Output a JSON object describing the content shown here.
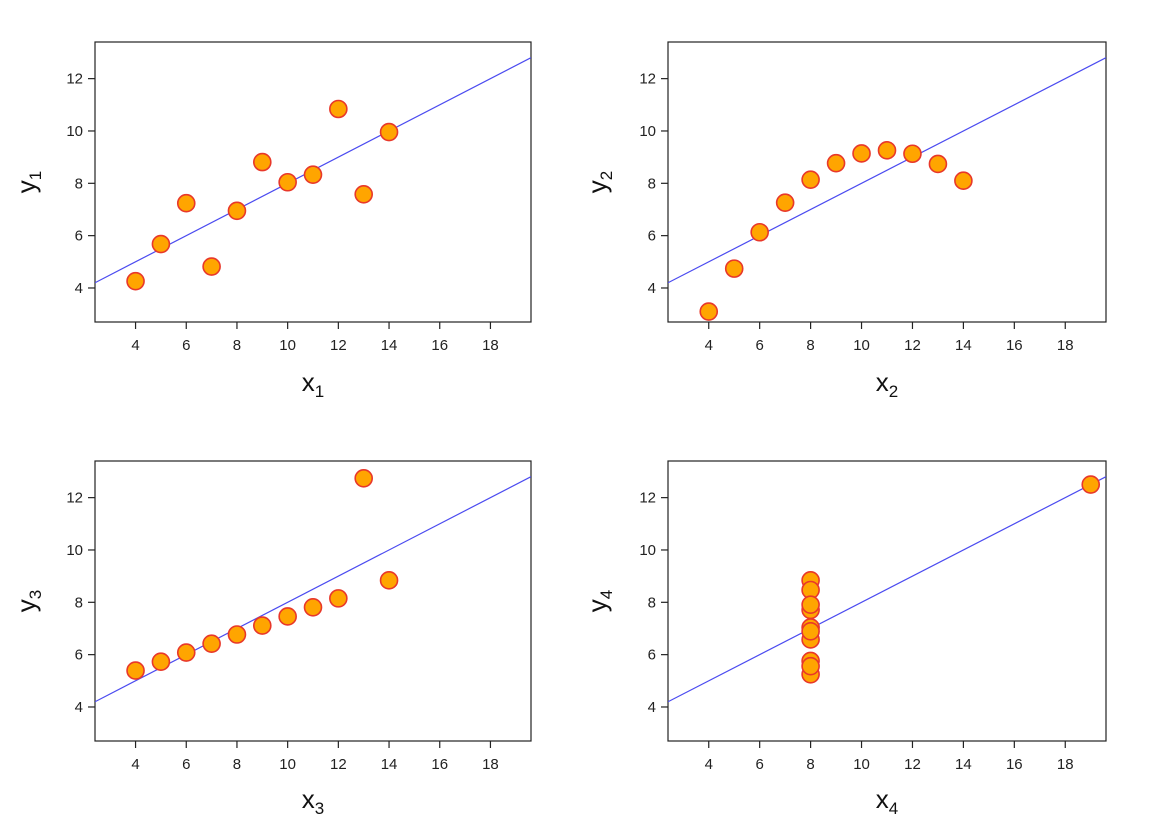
{
  "colors": {
    "point_fill": "#FFA500",
    "point_stroke": "#E8382A",
    "fit_line": "#4B4BF0",
    "axis": "#222222"
  },
  "chart_data": [
    {
      "type": "scatter",
      "xlabel": "x",
      "xlabel_sub": "1",
      "ylabel": "y",
      "ylabel_sub": "1",
      "xlim": [
        2.4,
        19.6
      ],
      "ylim": [
        2.7,
        13.4
      ],
      "xticks": [
        4,
        6,
        8,
        10,
        12,
        14,
        16,
        18
      ],
      "yticks": [
        4,
        6,
        8,
        10,
        12
      ],
      "x": [
        10,
        8,
        13,
        9,
        11,
        14,
        6,
        4,
        12,
        7,
        5
      ],
      "y": [
        8.04,
        6.95,
        7.58,
        8.81,
        8.33,
        9.96,
        7.24,
        4.26,
        10.84,
        4.82,
        5.68
      ],
      "fit_line": {
        "intercept": 3.0,
        "slope": 0.5
      },
      "grid": false
    },
    {
      "type": "scatter",
      "xlabel": "x",
      "xlabel_sub": "2",
      "ylabel": "y",
      "ylabel_sub": "2",
      "xlim": [
        2.4,
        19.6
      ],
      "ylim": [
        2.7,
        13.4
      ],
      "xticks": [
        4,
        6,
        8,
        10,
        12,
        14,
        16,
        18
      ],
      "yticks": [
        4,
        6,
        8,
        10,
        12
      ],
      "x": [
        10,
        8,
        13,
        9,
        11,
        14,
        6,
        4,
        12,
        7,
        5
      ],
      "y": [
        9.14,
        8.14,
        8.74,
        8.77,
        9.26,
        8.1,
        6.13,
        3.1,
        9.13,
        7.26,
        4.74
      ],
      "fit_line": {
        "intercept": 3.0,
        "slope": 0.5
      },
      "grid": false
    },
    {
      "type": "scatter",
      "xlabel": "x",
      "xlabel_sub": "3",
      "ylabel": "y",
      "ylabel_sub": "3",
      "xlim": [
        2.4,
        19.6
      ],
      "ylim": [
        2.7,
        13.4
      ],
      "xticks": [
        4,
        6,
        8,
        10,
        12,
        14,
        16,
        18
      ],
      "yticks": [
        4,
        6,
        8,
        10,
        12
      ],
      "x": [
        10,
        8,
        13,
        9,
        11,
        14,
        6,
        4,
        12,
        7,
        5
      ],
      "y": [
        7.46,
        6.77,
        12.74,
        7.11,
        7.81,
        8.84,
        6.08,
        5.39,
        8.15,
        6.42,
        5.73
      ],
      "fit_line": {
        "intercept": 3.0,
        "slope": 0.5
      },
      "grid": false
    },
    {
      "type": "scatter",
      "xlabel": "x",
      "xlabel_sub": "4",
      "ylabel": "y",
      "ylabel_sub": "4",
      "xlim": [
        2.4,
        19.6
      ],
      "ylim": [
        2.7,
        13.4
      ],
      "xticks": [
        4,
        6,
        8,
        10,
        12,
        14,
        16,
        18
      ],
      "yticks": [
        4,
        6,
        8,
        10,
        12
      ],
      "x": [
        8,
        8,
        8,
        8,
        8,
        8,
        8,
        19,
        8,
        8,
        8
      ],
      "y": [
        6.58,
        5.76,
        7.71,
        8.84,
        8.47,
        7.04,
        5.25,
        12.5,
        5.56,
        7.91,
        6.89
      ],
      "fit_line": {
        "intercept": 3.0,
        "slope": 0.5
      },
      "grid": false
    }
  ]
}
